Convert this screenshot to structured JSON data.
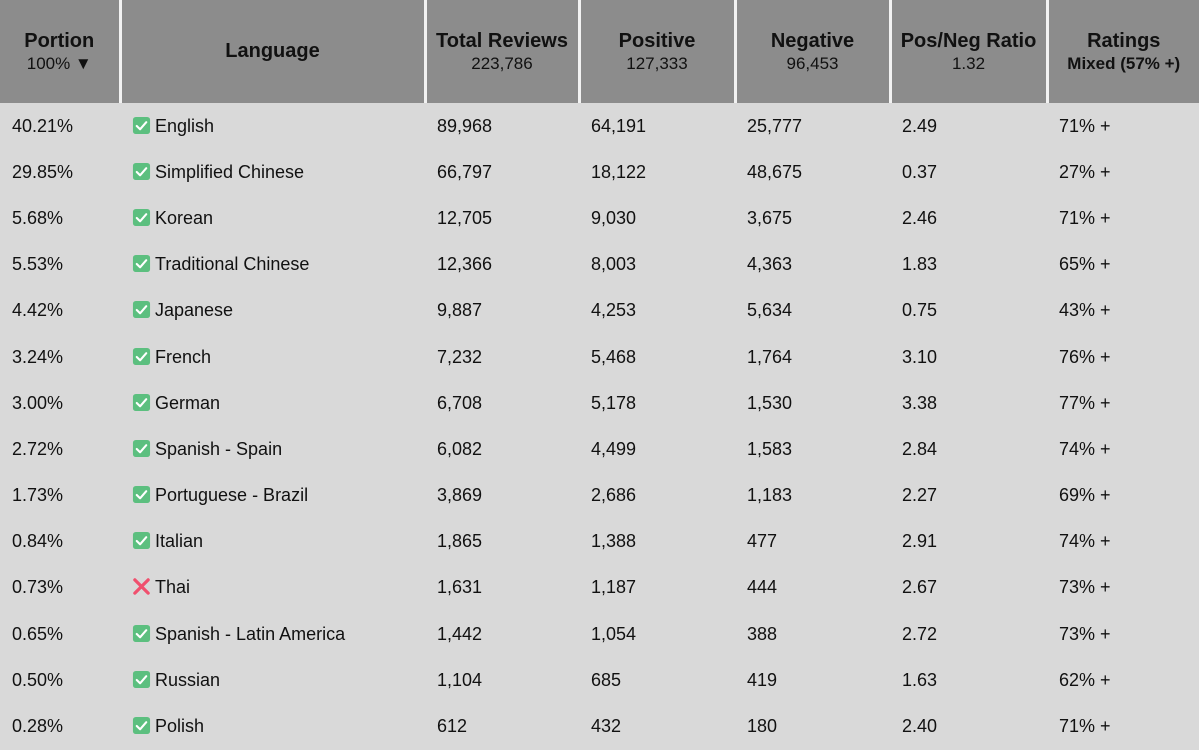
{
  "table": {
    "header": [
      {
        "title": "Portion",
        "sub": "100% ▼"
      },
      {
        "title": "Language"
      },
      {
        "title": "Total Reviews",
        "sub": "223,786"
      },
      {
        "title": "Positive",
        "sub": "127,333"
      },
      {
        "title": "Negative",
        "sub": "96,453"
      },
      {
        "title": "Pos/Neg Ratio",
        "sub": "1.32"
      },
      {
        "title": "Ratings",
        "sub": "Mixed (57% +)"
      }
    ],
    "rows": [
      [
        "40.21%",
        "English",
        "89,968",
        "64,191",
        "25,777",
        "2.49",
        "71% +"
      ],
      [
        "29.85%",
        "Simplified Chinese",
        "66,797",
        "18,122",
        "48,675",
        "0.37",
        "27% +"
      ],
      [
        "5.68%",
        "Korean",
        "12,705",
        "9,030",
        "3,675",
        "2.46",
        "71% +"
      ],
      [
        "5.53%",
        "Traditional Chinese",
        "12,366",
        "8,003",
        "4,363",
        "1.83",
        "65% +"
      ],
      [
        "4.42%",
        "Japanese",
        "9,887",
        "4,253",
        "5,634",
        "0.75",
        "43% +"
      ],
      [
        "3.24%",
        "French",
        "7,232",
        "5,468",
        "1,764",
        "3.10",
        "76% +"
      ],
      [
        "3.00%",
        "German",
        "6,708",
        "5,178",
        "1,530",
        "3.38",
        "77% +"
      ],
      [
        "2.72%",
        "Spanish - Spain",
        "6,082",
        "4,499",
        "1,583",
        "2.84",
        "74% +"
      ],
      [
        "1.73%",
        "Portuguese - Brazil",
        "3,869",
        "2,686",
        "1,183",
        "2.27",
        "69% +"
      ],
      [
        "0.84%",
        "Italian",
        "1,865",
        "1,388",
        "477",
        "2.91",
        "74% +"
      ],
      [
        "0.73%",
        "Thai",
        "1,631",
        "1,187",
        "444",
        "2.67",
        "73% +"
      ],
      [
        "0.65%",
        "Spanish - Latin America",
        "1,442",
        "1,054",
        "388",
        "2.72",
        "73% +"
      ],
      [
        "0.50%",
        "Russian",
        "1,104",
        "685",
        "419",
        "1.63",
        "62% +"
      ],
      [
        "0.28%",
        "Polish",
        "612",
        "432",
        "180",
        "2.40",
        "71% +"
      ]
    ],
    "supported": [
      true,
      true,
      true,
      true,
      true,
      true,
      true,
      true,
      true,
      true,
      false,
      true,
      true,
      true
    ]
  }
}
